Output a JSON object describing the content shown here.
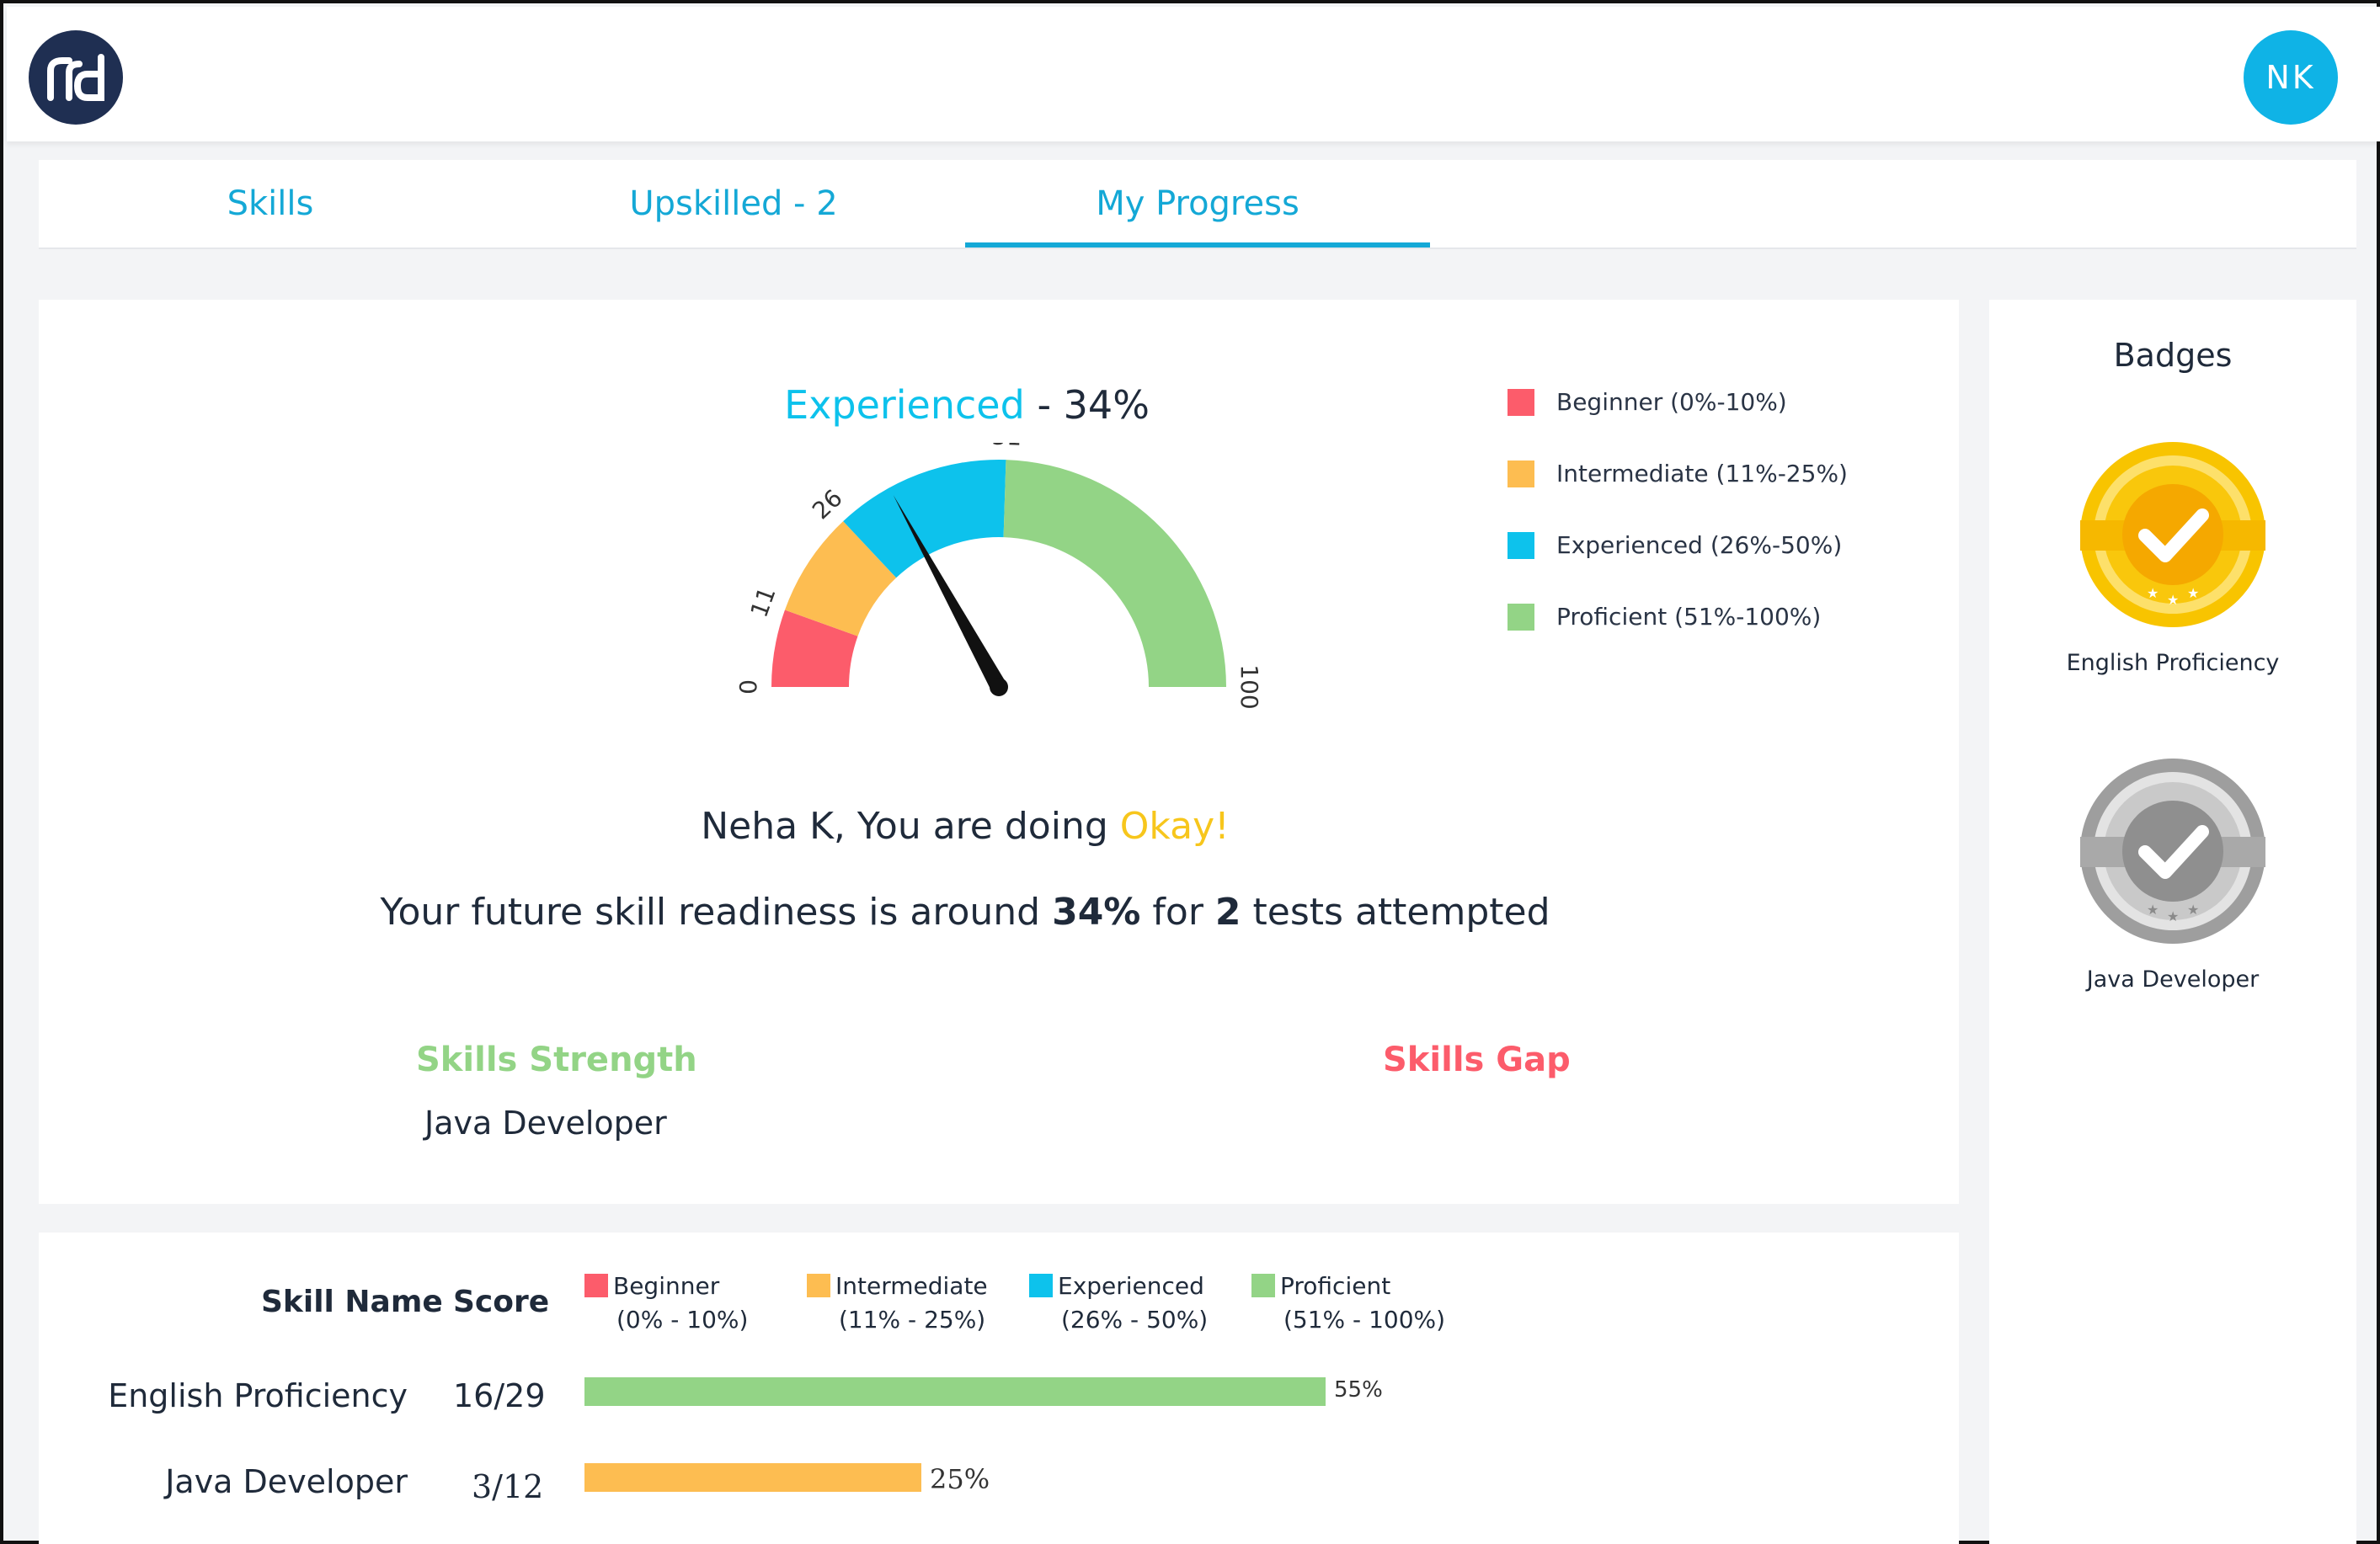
{
  "header": {
    "logo_icon": "rd-logo-icon",
    "avatar_initials": "NK",
    "brand_color": "#1f2f52",
    "accent_color": "#0fb3e6"
  },
  "tabs": [
    {
      "label": "Skills",
      "active": false
    },
    {
      "label": "Upskilled - 2",
      "active": false
    },
    {
      "label": "My Progress",
      "active": true
    }
  ],
  "gauge": {
    "level_label": "Experienced",
    "level_value": "- 34%",
    "value": 34,
    "min": 0,
    "max": 100,
    "tick_labels": [
      "0",
      "11",
      "26",
      "51",
      "100"
    ],
    "segments": [
      {
        "name": "Beginner",
        "from": 0,
        "to": 11,
        "color": "#fc5c6b"
      },
      {
        "name": "Intermediate",
        "from": 11,
        "to": 26,
        "color": "#fdbd51"
      },
      {
        "name": "Experienced",
        "from": 26,
        "to": 51,
        "color": "#0dc2ec"
      },
      {
        "name": "Proficient",
        "from": 51,
        "to": 100,
        "color": "#93d486"
      }
    ]
  },
  "legend": [
    {
      "label": "Beginner (0%-10%)",
      "color": "#fc5c6b"
    },
    {
      "label": "Intermediate (11%-25%)",
      "color": "#fdbd51"
    },
    {
      "label": "Experienced (26%-50%)",
      "color": "#0dc2ec"
    },
    {
      "label": "Proficient (51%-100%)",
      "color": "#93d486"
    }
  ],
  "message": {
    "greeting": "Neha K, You are doing",
    "status": "Okay!",
    "readiness_prefix": "Your future skill readiness is around",
    "readiness_value": "34%",
    "readiness_mid": "for",
    "tests_count": "2",
    "readiness_suffix": "tests attempted"
  },
  "skills_strength": {
    "title": "Skills Strength",
    "items": [
      "Java Developer"
    ]
  },
  "skills_gap": {
    "title": "Skills Gap",
    "items": []
  },
  "table": {
    "headers": {
      "skill_name": "Skill Name",
      "score": "Score"
    },
    "legend": [
      {
        "name": "Beginner",
        "range": "(0% - 10%)",
        "color": "#fc5c6b"
      },
      {
        "name": "Intermediate",
        "range": "(11% - 25%)",
        "color": "#fdbd51"
      },
      {
        "name": "Experienced",
        "range": "(26% - 50%)",
        "color": "#0dc2ec"
      },
      {
        "name": "Proficient",
        "range": "(51% - 100%)",
        "color": "#93d486"
      }
    ],
    "rows": [
      {
        "skill": "English Proficiency",
        "score": "16/29",
        "percent": 55,
        "percent_label": "55%",
        "color": "#93d486"
      },
      {
        "skill": "Java Developer",
        "score": "3/12",
        "percent": 25,
        "percent_label": "25%",
        "color": "#fdbd51"
      }
    ]
  },
  "badges": {
    "title": "Badges",
    "items": [
      {
        "name": "English Proficiency",
        "icon": "gold-check-badge-icon",
        "color": "#f5b700"
      },
      {
        "name": "Java Developer",
        "icon": "silver-check-badge-icon",
        "color": "#9a9a9a"
      }
    ]
  }
}
